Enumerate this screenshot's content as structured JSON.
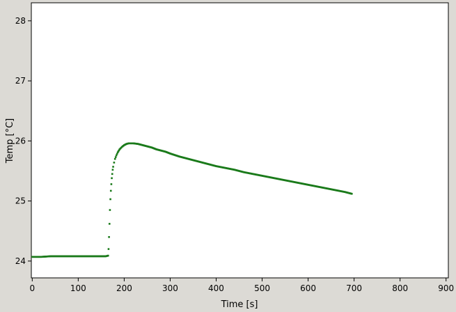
{
  "chart_data": {
    "type": "scatter",
    "xlabel": "Time [s]",
    "ylabel": "Temp [°C]",
    "xlim": [
      -2,
      905
    ],
    "ylim": [
      23.72,
      28.3
    ],
    "xticks": [
      0,
      100,
      200,
      300,
      400,
      500,
      600,
      700,
      800,
      900
    ],
    "yticks": [
      24,
      25,
      26,
      27,
      28
    ],
    "grid": false,
    "colors": {
      "marker": "#1a7a1a",
      "plot_background": "#ffffff",
      "figure_background": "#dcdad5"
    },
    "series": [
      {
        "x": [
          0,
          20,
          40,
          60,
          80,
          100,
          120,
          140,
          160,
          165,
          166,
          167,
          168,
          169,
          170,
          171,
          172,
          173,
          174,
          175,
          176,
          178,
          180,
          183,
          186,
          190,
          195,
          200,
          205,
          210,
          215,
          220,
          230,
          240,
          250,
          260,
          270,
          280,
          290,
          300,
          320,
          340,
          360,
          380,
          400,
          420,
          440,
          460,
          480,
          500,
          520,
          540,
          560,
          580,
          600,
          620,
          640,
          660,
          680,
          695
        ],
        "y": [
          24.07,
          24.07,
          24.08,
          24.08,
          24.08,
          24.08,
          24.08,
          24.08,
          24.08,
          24.09,
          24.2,
          24.4,
          24.62,
          24.85,
          25.03,
          25.17,
          25.28,
          25.38,
          25.45,
          25.52,
          25.57,
          25.64,
          25.7,
          25.76,
          25.81,
          25.86,
          25.9,
          25.93,
          25.95,
          25.96,
          25.96,
          25.96,
          25.95,
          25.93,
          25.91,
          25.89,
          25.86,
          25.84,
          25.82,
          25.79,
          25.74,
          25.7,
          25.66,
          25.62,
          25.58,
          25.55,
          25.52,
          25.48,
          25.45,
          25.42,
          25.39,
          25.36,
          25.33,
          25.3,
          25.27,
          25.24,
          25.21,
          25.18,
          25.15,
          25.12
        ]
      }
    ]
  }
}
